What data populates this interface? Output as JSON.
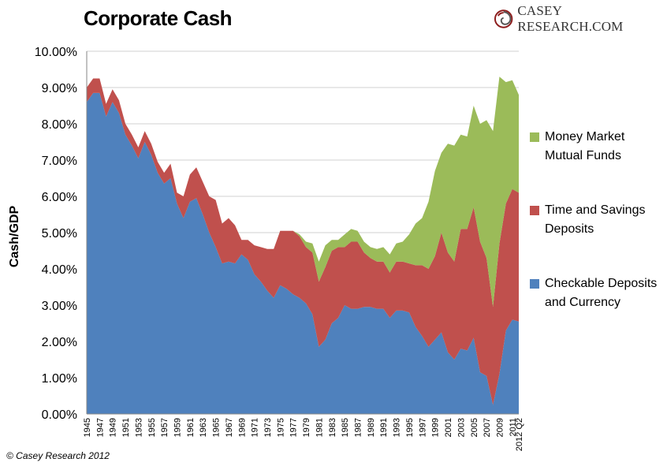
{
  "header": {
    "title": "Corporate Cash"
  },
  "brand": {
    "text": "CASEY RESEARCH.COM",
    "icon": "swirl-logo-icon",
    "color": "#8c1c1c"
  },
  "footer": {
    "copyright": "© Casey Research 2012"
  },
  "chart_data": {
    "type": "area",
    "stacked": true,
    "ylabel": "Cash/GDP",
    "xlabel": "",
    "ylim": [
      0,
      10
    ],
    "ytick_labels": [
      "0.00%",
      "1.00%",
      "2.00%",
      "3.00%",
      "4.00%",
      "5.00%",
      "6.00%",
      "7.00%",
      "8.00%",
      "9.00%",
      "10.00%"
    ],
    "x": [
      "1945",
      "1946",
      "1947",
      "1948",
      "1949",
      "1950",
      "1951",
      "1952",
      "1953",
      "1954",
      "1955",
      "1956",
      "1957",
      "1958",
      "1959",
      "1960",
      "1961",
      "1962",
      "1963",
      "1964",
      "1965",
      "1966",
      "1967",
      "1968",
      "1969",
      "1970",
      "1971",
      "1972",
      "1973",
      "1974",
      "1975",
      "1976",
      "1977",
      "1978",
      "1979",
      "1980",
      "1981",
      "1982",
      "1983",
      "1984",
      "1985",
      "1986",
      "1987",
      "1988",
      "1989",
      "1990",
      "1991",
      "1992",
      "1993",
      "1994",
      "1995",
      "1996",
      "1997",
      "1998",
      "1999",
      "2000",
      "2001",
      "2002",
      "2003",
      "2004",
      "2005",
      "2006",
      "2007",
      "2008",
      "2009",
      "2010",
      "2011",
      "2012 Q2"
    ],
    "xtick_labels": [
      "1945",
      "1947",
      "1949",
      "1951",
      "1953",
      "1955",
      "1957",
      "1959",
      "1961",
      "1963",
      "1965",
      "1967",
      "1969",
      "1971",
      "1973",
      "1975",
      "1977",
      "1979",
      "1981",
      "1983",
      "1985",
      "1987",
      "1989",
      "1991",
      "1993",
      "1995",
      "1997",
      "1999",
      "2001",
      "2003",
      "2005",
      "2007",
      "2009",
      "2011",
      "2012 Q2"
    ],
    "grid": "horizontal",
    "legend_position": "right",
    "series": [
      {
        "name": "Checkable Deposits and Currency",
        "color": "#4f81bd",
        "values": [
          8.6,
          8.85,
          8.85,
          8.2,
          8.6,
          8.3,
          7.7,
          7.4,
          7.05,
          7.5,
          7.15,
          6.65,
          6.35,
          6.5,
          5.8,
          5.4,
          5.85,
          5.95,
          5.5,
          5.0,
          4.6,
          4.15,
          4.2,
          4.15,
          4.4,
          4.25,
          3.85,
          3.65,
          3.4,
          3.2,
          3.55,
          3.45,
          3.3,
          3.2,
          3.05,
          2.75,
          1.85,
          2.05,
          2.5,
          2.65,
          3.0,
          2.9,
          2.9,
          2.95,
          2.95,
          2.9,
          2.9,
          2.65,
          2.85,
          2.85,
          2.8,
          2.4,
          2.15,
          1.85,
          2.05,
          2.25,
          1.7,
          1.5,
          1.8,
          1.75,
          2.1,
          1.15,
          1.05,
          0.25,
          1.1,
          2.3,
          2.6,
          2.55
        ]
      },
      {
        "name": "Time and Savings Deposits",
        "color": "#c0504d",
        "values": [
          0.4,
          0.4,
          0.4,
          0.35,
          0.35,
          0.35,
          0.3,
          0.3,
          0.3,
          0.3,
          0.3,
          0.3,
          0.3,
          0.4,
          0.3,
          0.6,
          0.75,
          0.85,
          0.9,
          1.0,
          1.3,
          1.1,
          1.2,
          1.05,
          0.4,
          0.55,
          0.8,
          0.95,
          1.15,
          1.35,
          1.5,
          1.6,
          1.75,
          1.7,
          1.55,
          1.7,
          1.8,
          2.0,
          2.0,
          1.95,
          1.6,
          1.85,
          1.85,
          1.5,
          1.35,
          1.3,
          1.3,
          1.25,
          1.35,
          1.35,
          1.35,
          1.7,
          1.95,
          2.15,
          2.3,
          2.75,
          2.75,
          2.7,
          3.3,
          3.35,
          3.6,
          3.6,
          3.25,
          2.7,
          3.6,
          3.5,
          3.6,
          3.55
        ]
      },
      {
        "name": "Money Market Mutual Funds",
        "color": "#9bbb59",
        "values": [
          0,
          0,
          0,
          0,
          0,
          0,
          0,
          0,
          0,
          0,
          0,
          0,
          0,
          0,
          0,
          0,
          0,
          0,
          0,
          0,
          0,
          0,
          0,
          0,
          0,
          0,
          0,
          0,
          0,
          0,
          0,
          0,
          0,
          0.05,
          0.15,
          0.25,
          0.55,
          0.6,
          0.3,
          0.2,
          0.35,
          0.35,
          0.3,
          0.3,
          0.3,
          0.35,
          0.4,
          0.5,
          0.5,
          0.55,
          0.8,
          1.15,
          1.3,
          1.85,
          2.35,
          2.2,
          3.0,
          3.2,
          2.6,
          2.55,
          2.8,
          3.25,
          3.8,
          4.85,
          4.6,
          3.35,
          3.0,
          2.7
        ]
      }
    ]
  }
}
